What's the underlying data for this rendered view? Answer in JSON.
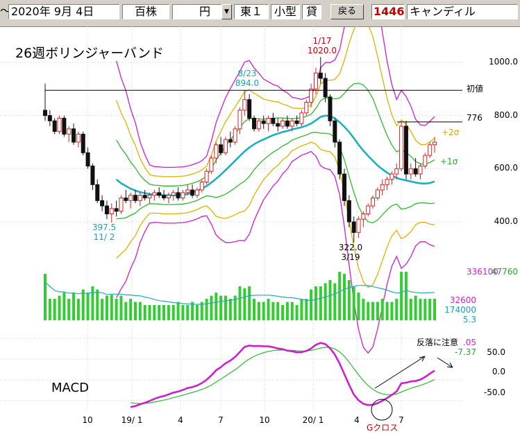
{
  "toolbar": {
    "tilde": "～",
    "date": "2020年 9月 4日",
    "unit_selector": "百株",
    "currency_value": "円",
    "market": "東１",
    "size_class": "小型",
    "margin_flag": "貸",
    "back_button": "戻る",
    "code": "1446",
    "company": "キャンディル"
  },
  "colors": {
    "candle_up": "#d42020",
    "candle_down": "#111111",
    "band_pm1": "#2eb82e",
    "band_pm2": "#e0b000",
    "band_pm3": "#cc1ecc",
    "middle": "#1ab0c0",
    "macd": "#cc1ecc",
    "signal": "#2eb82e",
    "volume_bar": "#33cc33",
    "volume_line": "#20a8c0"
  },
  "chart_data": [
    {
      "type": "candlestick",
      "title": "26週ボリンジャーバンド",
      "yticks": [
        "1000.0",
        "800.0",
        "600.0",
        "400.0"
      ],
      "ylim": [
        250,
        1150
      ],
      "xticks": [
        "10",
        "19/ 1",
        "4",
        "7",
        "10",
        "20/ 1",
        "4",
        "7"
      ],
      "lines": [
        {
          "label": "初値",
          "value": 895
        },
        {
          "label": "776",
          "value": 776
        }
      ],
      "band_labels": [
        "+2σ",
        "+1σ"
      ],
      "annotations": [
        {
          "date_label": "1/17",
          "price_label": "1020.0"
        },
        {
          "date_label": "8/23",
          "price_label": "894.0"
        },
        {
          "price_label": "397.5",
          "date_label": "11/ 2"
        },
        {
          "price_label": "322.0",
          "date_label": "3/19"
        }
      ],
      "candles_ohlc": [
        [
          820,
          920,
          780,
          800
        ],
        [
          800,
          820,
          760,
          780
        ],
        [
          780,
          790,
          730,
          740
        ],
        [
          740,
          800,
          730,
          790
        ],
        [
          790,
          800,
          720,
          730
        ],
        [
          730,
          760,
          700,
          750
        ],
        [
          750,
          770,
          690,
          700
        ],
        [
          700,
          740,
          680,
          730
        ],
        [
          730,
          740,
          650,
          660
        ],
        [
          660,
          680,
          600,
          610
        ],
        [
          610,
          620,
          520,
          540
        ],
        [
          540,
          560,
          470,
          480
        ],
        [
          480,
          500,
          440,
          460
        ],
        [
          460,
          480,
          410,
          430
        ],
        [
          430,
          470,
          397,
          450
        ],
        [
          450,
          480,
          420,
          440
        ],
        [
          440,
          500,
          430,
          490
        ],
        [
          490,
          520,
          470,
          480
        ],
        [
          480,
          510,
          450,
          500
        ],
        [
          500,
          520,
          470,
          480
        ],
        [
          480,
          510,
          460,
          500
        ],
        [
          500,
          520,
          480,
          490
        ],
        [
          490,
          510,
          470,
          500
        ],
        [
          500,
          520,
          480,
          510
        ],
        [
          510,
          530,
          490,
          500
        ],
        [
          500,
          520,
          480,
          490
        ],
        [
          490,
          510,
          470,
          500
        ],
        [
          500,
          520,
          480,
          510
        ],
        [
          510,
          530,
          480,
          490
        ],
        [
          490,
          520,
          480,
          510
        ],
        [
          510,
          540,
          500,
          520
        ],
        [
          520,
          540,
          490,
          500
        ],
        [
          500,
          530,
          490,
          520
        ],
        [
          520,
          560,
          510,
          550
        ],
        [
          550,
          600,
          540,
          590
        ],
        [
          590,
          650,
          580,
          640
        ],
        [
          640,
          700,
          620,
          690
        ],
        [
          690,
          720,
          650,
          660
        ],
        [
          660,
          720,
          650,
          710
        ],
        [
          710,
          740,
          680,
          700
        ],
        [
          700,
          760,
          690,
          750
        ],
        [
          750,
          830,
          730,
          820
        ],
        [
          820,
          894,
          800,
          860
        ],
        [
          860,
          880,
          780,
          790
        ],
        [
          790,
          800,
          740,
          750
        ],
        [
          750,
          790,
          740,
          780
        ],
        [
          780,
          800,
          750,
          770
        ],
        [
          770,
          800,
          740,
          790
        ],
        [
          790,
          810,
          760,
          770
        ],
        [
          770,
          790,
          740,
          760
        ],
        [
          760,
          790,
          750,
          780
        ],
        [
          780,
          800,
          750,
          760
        ],
        [
          760,
          790,
          740,
          780
        ],
        [
          780,
          800,
          760,
          770
        ],
        [
          770,
          820,
          760,
          810
        ],
        [
          810,
          860,
          800,
          850
        ],
        [
          850,
          920,
          830,
          900
        ],
        [
          900,
          980,
          880,
          960
        ],
        [
          960,
          1020,
          920,
          940
        ],
        [
          940,
          960,
          850,
          870
        ],
        [
          870,
          880,
          760,
          780
        ],
        [
          780,
          790,
          680,
          700
        ],
        [
          700,
          710,
          560,
          580
        ],
        [
          580,
          600,
          460,
          480
        ],
        [
          480,
          500,
          380,
          400
        ],
        [
          400,
          420,
          322,
          360
        ],
        [
          360,
          420,
          340,
          410
        ],
        [
          410,
          440,
          380,
          430
        ],
        [
          430,
          470,
          420,
          460
        ],
        [
          460,
          500,
          450,
          490
        ],
        [
          490,
          530,
          480,
          520
        ],
        [
          520,
          560,
          500,
          540
        ],
        [
          540,
          570,
          520,
          560
        ],
        [
          560,
          590,
          540,
          580
        ],
        [
          580,
          620,
          560,
          600
        ],
        [
          600,
          776,
          590,
          760
        ],
        [
          760,
          780,
          560,
          580
        ],
        [
          580,
          620,
          560,
          600
        ],
        [
          600,
          640,
          570,
          580
        ],
        [
          580,
          620,
          560,
          610
        ],
        [
          610,
          660,
          600,
          650
        ],
        [
          650,
          700,
          640,
          690
        ],
        [
          690,
          720,
          660,
          700
        ]
      ],
      "middle_band": [
        null,
        null,
        null,
        null,
        null,
        null,
        null,
        null,
        null,
        null,
        null,
        null,
        null,
        null,
        null,
        560,
        545,
        535,
        525,
        518,
        512,
        508,
        505,
        503,
        502,
        500,
        500,
        500,
        501,
        502,
        505,
        510,
        516,
        525,
        535,
        548,
        562,
        578,
        595,
        612,
        630,
        648,
        665,
        680,
        692,
        702,
        710,
        718,
        726,
        732,
        738,
        742,
        748,
        752,
        756,
        762,
        770,
        782,
        795,
        800,
        798,
        790,
        775,
        758,
        738,
        715,
        690,
        668,
        648,
        630,
        612,
        598,
        585,
        575,
        565,
        560,
        556,
        552,
        548,
        545,
        544,
        546,
        552
      ],
      "bands_percent_note": ""
    },
    {
      "type": "bar",
      "title": "",
      "legend_values": [
        "336100",
        "47760",
        "32600",
        "174000",
        "5.3"
      ]
    },
    {
      "type": "line",
      "title": "MACD",
      "yticks": [
        "50.0",
        "0.0",
        "-50.0"
      ],
      "ylim": [
        -90,
        90
      ],
      "legend_values": [
        ".05",
        "-7.37"
      ],
      "annotations": [
        "反落に注意",
        "Gクロス"
      ]
    }
  ]
}
